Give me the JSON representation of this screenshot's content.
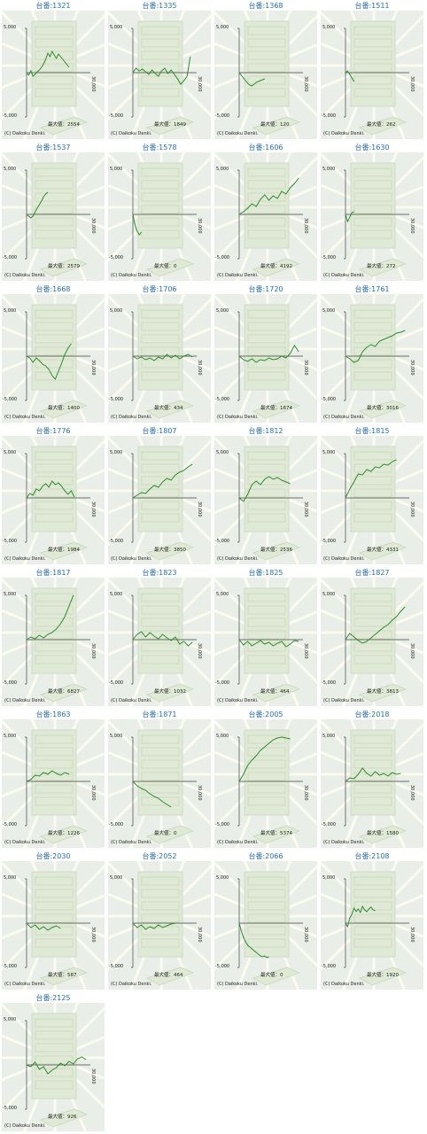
{
  "labels": {
    "ymax": "5,000",
    "ymin": "-5,000",
    "xmax": "30,000",
    "max_prefix": "最大値：",
    "copyright": "(C) Daikoku Denki."
  },
  "colors": {
    "line": "#2e8b2e",
    "title": "#2c6fa6",
    "panel": "#e9eee8",
    "axis": "#444444"
  },
  "chart_data": [
    {
      "type": "line",
      "title": "台番:1321",
      "max": "2554",
      "ylim": [
        -5000,
        5000
      ],
      "xlim": [
        0,
        30000
      ],
      "x": [
        0,
        1000,
        2000,
        3000,
        4000,
        5000,
        6000,
        7000,
        8000,
        9000,
        10000,
        11000,
        12000,
        13000,
        14000,
        15000,
        16000,
        17000,
        18000,
        19000,
        20000
      ],
      "y": [
        0,
        -300,
        200,
        -400,
        -200,
        100,
        300,
        600,
        1000,
        1500,
        2200,
        1800,
        2400,
        2000,
        1600,
        2100,
        1800,
        1500,
        1200,
        900,
        600
      ]
    },
    {
      "type": "line",
      "title": "台番:1335",
      "max": "1849",
      "ylim": [
        -5000,
        5000
      ],
      "xlim": [
        0,
        30000
      ],
      "x": [
        0,
        1500,
        3000,
        4500,
        6000,
        7500,
        9000,
        10500,
        12000,
        13500,
        15000,
        16500,
        18000,
        19500,
        21000,
        22500,
        24000,
        25500,
        27000
      ],
      "y": [
        0,
        500,
        200,
        400,
        100,
        -200,
        300,
        -100,
        -400,
        200,
        500,
        -100,
        300,
        -200,
        -700,
        -1300,
        -900,
        -400,
        1800
      ]
    },
    {
      "type": "line",
      "title": "台番:1368",
      "max": "120",
      "ylim": [
        -5000,
        5000
      ],
      "xlim": [
        0,
        30000
      ],
      "x": [
        0,
        1000,
        2000,
        3000,
        4000,
        5000,
        6000,
        7000,
        8000,
        9000,
        10000,
        11000,
        12000
      ],
      "y": [
        0,
        -300,
        -600,
        -900,
        -1200,
        -1400,
        -1500,
        -1300,
        -1100,
        -1000,
        -900,
        -800,
        -700
      ]
    },
    {
      "type": "line",
      "title": "台番:1511",
      "max": "262",
      "ylim": [
        -5000,
        5000
      ],
      "xlim": [
        0,
        30000
      ],
      "x": [
        0,
        1000,
        2000,
        3000,
        4000
      ],
      "y": [
        0,
        200,
        -200,
        -600,
        -1000
      ]
    },
    {
      "type": "line",
      "title": "台番:1537",
      "max": "2579",
      "ylim": [
        -5000,
        5000
      ],
      "xlim": [
        0,
        30000
      ],
      "x": [
        0,
        1000,
        2000,
        3000,
        4000,
        5000,
        6000,
        7000,
        8000,
        9000,
        10000
      ],
      "y": [
        0,
        -200,
        -400,
        -200,
        300,
        700,
        1100,
        1500,
        2000,
        2300,
        2500
      ]
    },
    {
      "type": "line",
      "title": "台番:1578",
      "max": "0",
      "ylim": [
        -5000,
        5000
      ],
      "xlim": [
        0,
        30000
      ],
      "x": [
        0,
        1000,
        2000,
        3000,
        4000
      ],
      "y": [
        0,
        -1200,
        -1900,
        -2300,
        -2000
      ]
    },
    {
      "type": "line",
      "title": "台番:1606",
      "max": "4192",
      "ylim": [
        -5000,
        5000
      ],
      "xlim": [
        0,
        30000
      ],
      "x": [
        0,
        2000,
        4000,
        6000,
        8000,
        10000,
        12000,
        14000,
        16000,
        18000,
        20000,
        22000,
        24000,
        26000,
        28000
      ],
      "y": [
        0,
        300,
        700,
        1200,
        900,
        1700,
        2200,
        1600,
        2100,
        1800,
        2600,
        2300,
        3000,
        3500,
        4100
      ]
    },
    {
      "type": "line",
      "title": "台番:1630",
      "max": "272",
      "ylim": [
        -5000,
        5000
      ],
      "xlim": [
        0,
        30000
      ],
      "x": [
        0,
        1000,
        2000,
        3000,
        4000
      ],
      "y": [
        0,
        -800,
        -300,
        200,
        300
      ]
    },
    {
      "type": "line",
      "title": "台番:1668",
      "max": "1400",
      "ylim": [
        -5000,
        5000
      ],
      "xlim": [
        0,
        30000
      ],
      "x": [
        0,
        1500,
        3000,
        4500,
        6000,
        7500,
        9000,
        10500,
        12000,
        13500,
        15000,
        16500,
        18000,
        19500,
        21000
      ],
      "y": [
        0,
        -200,
        -700,
        -200,
        -500,
        -900,
        -1100,
        -1500,
        -2200,
        -2600,
        -1700,
        -800,
        200,
        900,
        1400
      ]
    },
    {
      "type": "line",
      "title": "台番:1706",
      "max": "434",
      "ylim": [
        -5000,
        5000
      ],
      "xlim": [
        0,
        30000
      ],
      "x": [
        0,
        2000,
        4000,
        6000,
        8000,
        10000,
        12000,
        14000,
        16000,
        18000,
        20000,
        22000,
        24000,
        26000,
        28000
      ],
      "y": [
        0,
        -300,
        -100,
        -400,
        -200,
        -500,
        -100,
        -300,
        200,
        -200,
        100,
        -300,
        0,
        200,
        -100
      ]
    },
    {
      "type": "line",
      "title": "台番:1720",
      "max": "1674",
      "ylim": [
        -5000,
        5000
      ],
      "xlim": [
        0,
        30000
      ],
      "x": [
        0,
        2000,
        4000,
        6000,
        8000,
        10000,
        12000,
        14000,
        16000,
        18000,
        20000,
        22000,
        24000,
        26000,
        28000
      ],
      "y": [
        0,
        -400,
        -600,
        -300,
        -700,
        -400,
        -500,
        -200,
        -400,
        -300,
        0,
        -200,
        300,
        1200,
        500
      ]
    },
    {
      "type": "line",
      "title": "台番:1761",
      "max": "3016",
      "ylim": [
        -5000,
        5000
      ],
      "xlim": [
        0,
        30000
      ],
      "x": [
        0,
        2000,
        4000,
        6000,
        8000,
        10000,
        12000,
        14000,
        16000,
        18000,
        20000,
        22000,
        24000,
        26000,
        28000
      ],
      "y": [
        0,
        -300,
        -700,
        -500,
        500,
        1000,
        1300,
        1100,
        1700,
        1900,
        2100,
        2300,
        2600,
        2700,
        2900
      ]
    },
    {
      "type": "line",
      "title": "台番:1776",
      "max": "1984",
      "ylim": [
        -5000,
        5000
      ],
      "xlim": [
        0,
        30000
      ],
      "x": [
        0,
        1500,
        3000,
        4500,
        6000,
        7500,
        9000,
        10500,
        12000,
        13500,
        15000,
        16500,
        18000,
        19500,
        21000,
        22500
      ],
      "y": [
        0,
        500,
        300,
        1000,
        800,
        1300,
        1600,
        1200,
        1900,
        1500,
        1700,
        1300,
        800,
        400,
        800,
        100
      ]
    },
    {
      "type": "line",
      "title": "台番:1807",
      "max": "3850",
      "ylim": [
        -5000,
        5000
      ],
      "xlim": [
        0,
        30000
      ],
      "x": [
        0,
        2000,
        4000,
        6000,
        8000,
        10000,
        12000,
        14000,
        16000,
        18000,
        20000,
        22000,
        24000,
        26000,
        28000
      ],
      "y": [
        0,
        300,
        600,
        500,
        1000,
        1400,
        1200,
        1800,
        2200,
        2000,
        2600,
        2900,
        3100,
        3500,
        3800
      ]
    },
    {
      "type": "line",
      "title": "台番:1812",
      "max": "2536",
      "ylim": [
        -5000,
        5000
      ],
      "xlim": [
        0,
        30000
      ],
      "x": [
        0,
        2000,
        4000,
        6000,
        8000,
        10000,
        12000,
        14000,
        16000,
        18000,
        20000,
        22000,
        24000
      ],
      "y": [
        0,
        -400,
        400,
        1500,
        1900,
        1500,
        2100,
        2400,
        2100,
        2300,
        2000,
        1800,
        1600
      ]
    },
    {
      "type": "line",
      "title": "台番:1815",
      "max": "4331",
      "ylim": [
        -5000,
        5000
      ],
      "xlim": [
        0,
        30000
      ],
      "x": [
        0,
        2000,
        4000,
        6000,
        8000,
        10000,
        12000,
        14000,
        16000,
        18000,
        20000,
        22000,
        24000
      ],
      "y": [
        0,
        1000,
        1800,
        2700,
        2600,
        3200,
        3000,
        3500,
        3400,
        3800,
        3700,
        4100,
        4300
      ]
    },
    {
      "type": "line",
      "title": "台番:1817",
      "max": "6827",
      "ylim": [
        -5000,
        5000
      ],
      "xlim": [
        0,
        30000
      ],
      "x": [
        0,
        2000,
        4000,
        6000,
        8000,
        10000,
        12000,
        14000,
        16000,
        18000,
        20000,
        22000
      ],
      "y": [
        0,
        300,
        100,
        500,
        200,
        600,
        800,
        1200,
        1800,
        2600,
        3800,
        5000
      ]
    },
    {
      "type": "line",
      "title": "台番:1823",
      "max": "1032",
      "ylim": [
        -5000,
        5000
      ],
      "xlim": [
        0,
        30000
      ],
      "x": [
        0,
        2000,
        4000,
        6000,
        8000,
        10000,
        12000,
        14000,
        16000,
        18000,
        20000,
        22000,
        24000,
        26000,
        28000
      ],
      "y": [
        0,
        600,
        900,
        300,
        800,
        400,
        100,
        600,
        200,
        -100,
        300,
        -500,
        -200,
        -700,
        -300
      ]
    },
    {
      "type": "line",
      "title": "台番:1825",
      "max": "464",
      "ylim": [
        -5000,
        5000
      ],
      "xlim": [
        0,
        30000
      ],
      "x": [
        0,
        2000,
        4000,
        6000,
        8000,
        10000,
        12000,
        14000,
        16000,
        18000,
        20000,
        22000,
        24000,
        26000,
        28000
      ],
      "y": [
        0,
        -600,
        -200,
        -700,
        -400,
        -100,
        -500,
        -300,
        -700,
        -400,
        -200,
        -800,
        -500,
        -100,
        -200
      ]
    },
    {
      "type": "line",
      "title": "台番:1827",
      "max": "3813",
      "ylim": [
        -5000,
        5000
      ],
      "xlim": [
        0,
        30000
      ],
      "x": [
        0,
        2000,
        4000,
        6000,
        8000,
        10000,
        12000,
        14000,
        16000,
        18000,
        20000,
        22000,
        24000,
        26000,
        28000
      ],
      "y": [
        0,
        700,
        300,
        -100,
        -400,
        -200,
        200,
        600,
        1000,
        1400,
        1700,
        2200,
        2600,
        3200,
        3700
      ]
    },
    {
      "type": "line",
      "title": "台番:1863",
      "max": "1226",
      "ylim": [
        -5000,
        5000
      ],
      "xlim": [
        0,
        30000
      ],
      "x": [
        0,
        2000,
        4000,
        6000,
        8000,
        10000,
        12000,
        14000,
        16000,
        18000,
        20000
      ],
      "y": [
        0,
        200,
        700,
        600,
        1000,
        800,
        1200,
        900,
        700,
        1000,
        800
      ]
    },
    {
      "type": "line",
      "title": "台番:1871",
      "max": "0",
      "ylim": [
        -5000,
        5000
      ],
      "xlim": [
        0,
        30000
      ],
      "x": [
        0,
        2000,
        4000,
        6000,
        8000,
        10000,
        12000,
        14000,
        16000,
        18000
      ],
      "y": [
        0,
        -500,
        -800,
        -1000,
        -1400,
        -1700,
        -1900,
        -2300,
        -2600,
        -2900
      ]
    },
    {
      "type": "line",
      "title": "台番:2005",
      "max": "5374",
      "ylim": [
        -5000,
        5000
      ],
      "xlim": [
        0,
        30000
      ],
      "x": [
        0,
        2000,
        4000,
        6000,
        8000,
        10000,
        12000,
        14000,
        16000,
        18000,
        20000,
        22000,
        24000
      ],
      "y": [
        0,
        800,
        1800,
        2400,
        2900,
        3500,
        3900,
        4300,
        4700,
        4900,
        5000,
        4900,
        4800
      ]
    },
    {
      "type": "line",
      "title": "台番:2018",
      "max": "1580",
      "ylim": [
        -5000,
        5000
      ],
      "xlim": [
        0,
        30000
      ],
      "x": [
        0,
        2000,
        4000,
        6000,
        8000,
        10000,
        12000,
        14000,
        16000,
        18000,
        20000,
        22000,
        24000,
        26000
      ],
      "y": [
        0,
        400,
        300,
        800,
        1500,
        900,
        600,
        1100,
        700,
        900,
        600,
        1000,
        800,
        900
      ]
    },
    {
      "type": "line",
      "title": "台番:2030",
      "max": "587",
      "ylim": [
        -5000,
        5000
      ],
      "xlim": [
        0,
        30000
      ],
      "x": [
        0,
        2000,
        4000,
        6000,
        8000,
        10000,
        12000,
        14000,
        16000
      ],
      "y": [
        0,
        -500,
        -200,
        -700,
        -400,
        -800,
        -500,
        -300,
        -600
      ]
    },
    {
      "type": "line",
      "title": "台番:2052",
      "max": "464",
      "ylim": [
        -5000,
        5000
      ],
      "xlim": [
        0,
        30000
      ],
      "x": [
        0,
        2000,
        4000,
        6000,
        8000,
        10000,
        12000,
        14000,
        16000,
        18000,
        20000
      ],
      "y": [
        0,
        -500,
        -200,
        -700,
        -400,
        -600,
        -200,
        -500,
        -300,
        -100,
        0
      ]
    },
    {
      "type": "line",
      "title": "台番:2066",
      "max": "0",
      "ylim": [
        -5000,
        5000
      ],
      "xlim": [
        0,
        30000
      ],
      "x": [
        0,
        1000,
        2000,
        3000,
        4000,
        5000,
        6000,
        7000,
        8000,
        9000,
        10000,
        11000,
        12000,
        13000,
        14000
      ],
      "y": [
        0,
        -900,
        -1600,
        -2100,
        -2500,
        -2700,
        -2900,
        -3100,
        -3300,
        -3500,
        -3700,
        -3800,
        -3700,
        -3900,
        -3800
      ]
    },
    {
      "type": "line",
      "title": "台番:2108",
      "max": "1920",
      "ylim": [
        -5000,
        5000
      ],
      "xlim": [
        0,
        30000
      ],
      "x": [
        0,
        1000,
        2000,
        3000,
        4000,
        5000,
        6000,
        7000,
        8000,
        9000,
        10000,
        11000,
        12000,
        13000,
        14000
      ],
      "y": [
        0,
        -400,
        600,
        1000,
        1700,
        1300,
        1600,
        1200,
        1900,
        1500,
        1300,
        1600,
        1800,
        1500,
        1400
      ]
    },
    {
      "type": "line",
      "title": "台番:2125",
      "max": "926",
      "ylim": [
        -5000,
        5000
      ],
      "xlim": [
        0,
        30000
      ],
      "x": [
        0,
        2000,
        4000,
        6000,
        8000,
        10000,
        12000,
        14000,
        16000,
        18000,
        20000,
        22000,
        24000,
        26000,
        28000
      ],
      "y": [
        0,
        -200,
        300,
        -500,
        -200,
        -1000,
        -600,
        -300,
        200,
        -100,
        400,
        100,
        700,
        900,
        600
      ]
    }
  ]
}
